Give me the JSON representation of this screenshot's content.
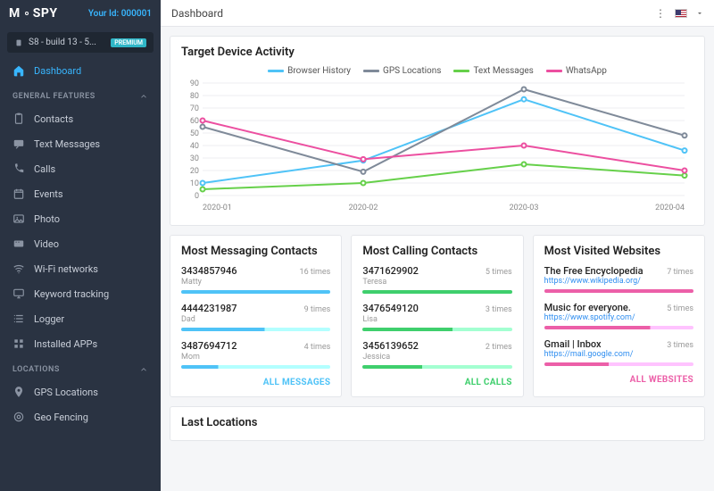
{
  "app": {
    "logo_prefix": "M",
    "logo_suffix": "SPY",
    "user_id_label": "Your Id: 000001"
  },
  "device": {
    "name": "S8 - build 13 - 5...",
    "badge": "PREMIUM"
  },
  "sidebar": {
    "dashboard": "Dashboard",
    "section_general": "GENERAL FEATURES",
    "items_general": [
      {
        "label": "Contacts",
        "icon": "clipboard"
      },
      {
        "label": "Text Messages",
        "icon": "message"
      },
      {
        "label": "Calls",
        "icon": "phone"
      },
      {
        "label": "Events",
        "icon": "calendar"
      },
      {
        "label": "Photo",
        "icon": "image"
      },
      {
        "label": "Video",
        "icon": "video"
      },
      {
        "label": "Wi-Fi networks",
        "icon": "wifi"
      },
      {
        "label": "Keyword tracking",
        "icon": "monitor"
      },
      {
        "label": "Logger",
        "icon": "list"
      },
      {
        "label": "Installed APPs",
        "icon": "grid"
      }
    ],
    "section_locations": "LOCATIONS",
    "items_locations": [
      {
        "label": "GPS Locations",
        "icon": "pin"
      },
      {
        "label": "Geo Fencing",
        "icon": "target"
      }
    ]
  },
  "topbar": {
    "title": "Dashboard"
  },
  "activity_chart": {
    "title": "Target Device Activity",
    "type": "line",
    "xlabels": [
      "2020-01",
      "2020-02",
      "2020-03",
      "2020-04"
    ],
    "ylim": [
      0,
      90
    ],
    "ytick_step": 10,
    "grid_color": "#eceef1",
    "background_color": "#ffffff",
    "axis_fontsize": 9,
    "line_width": 2,
    "series": [
      {
        "name": "Browser History",
        "color": "#4fc3f7",
        "values": [
          10,
          28,
          77,
          36
        ]
      },
      {
        "name": "GPS Locations",
        "color": "#7f8a99",
        "values": [
          55,
          19,
          85,
          48
        ]
      },
      {
        "name": "Text Messages",
        "color": "#66d04a",
        "values": [
          5,
          10,
          25,
          16
        ]
      },
      {
        "name": "WhatsApp",
        "color": "#ec4fa0",
        "values": [
          60,
          29,
          40,
          20
        ]
      }
    ]
  },
  "most_messaging": {
    "title": "Most Messaging Contacts",
    "link": "ALL MESSAGES",
    "accent": "#4fc3f7",
    "items": [
      {
        "number": "3434857946",
        "name": "Matty",
        "count": "16 times",
        "pct": 100
      },
      {
        "number": "4444231987",
        "name": "Dad",
        "count": "9 times",
        "pct": 56
      },
      {
        "number": "3487694712",
        "name": "Mom",
        "count": "4 times",
        "pct": 25
      }
    ]
  },
  "most_calling": {
    "title": "Most Calling Contacts",
    "link": "ALL CALLS",
    "accent": "#3fcf6d",
    "items": [
      {
        "number": "3471629902",
        "name": "Teresa",
        "count": "5 times",
        "pct": 100
      },
      {
        "number": "3476549120",
        "name": "Lisa",
        "count": "3 times",
        "pct": 60
      },
      {
        "number": "3456139652",
        "name": "Jessica",
        "count": "2 times",
        "pct": 40
      }
    ]
  },
  "most_visited": {
    "title": "Most Visited Websites",
    "link": "ALL WEBSITES",
    "accent": "#ec5fa8",
    "items": [
      {
        "title": "The Free Encyclopedia",
        "url": "https://www.wikipedia.org/",
        "count": "7 times",
        "pct": 100
      },
      {
        "title": "Music for everyone.",
        "url": "https://www.spotify.com/",
        "count": "5 times",
        "pct": 71
      },
      {
        "title": "Gmail | Inbox",
        "url": "https://mail.google.com/",
        "count": "3 times",
        "pct": 43
      }
    ]
  },
  "last_locations": {
    "title": "Last Locations"
  }
}
